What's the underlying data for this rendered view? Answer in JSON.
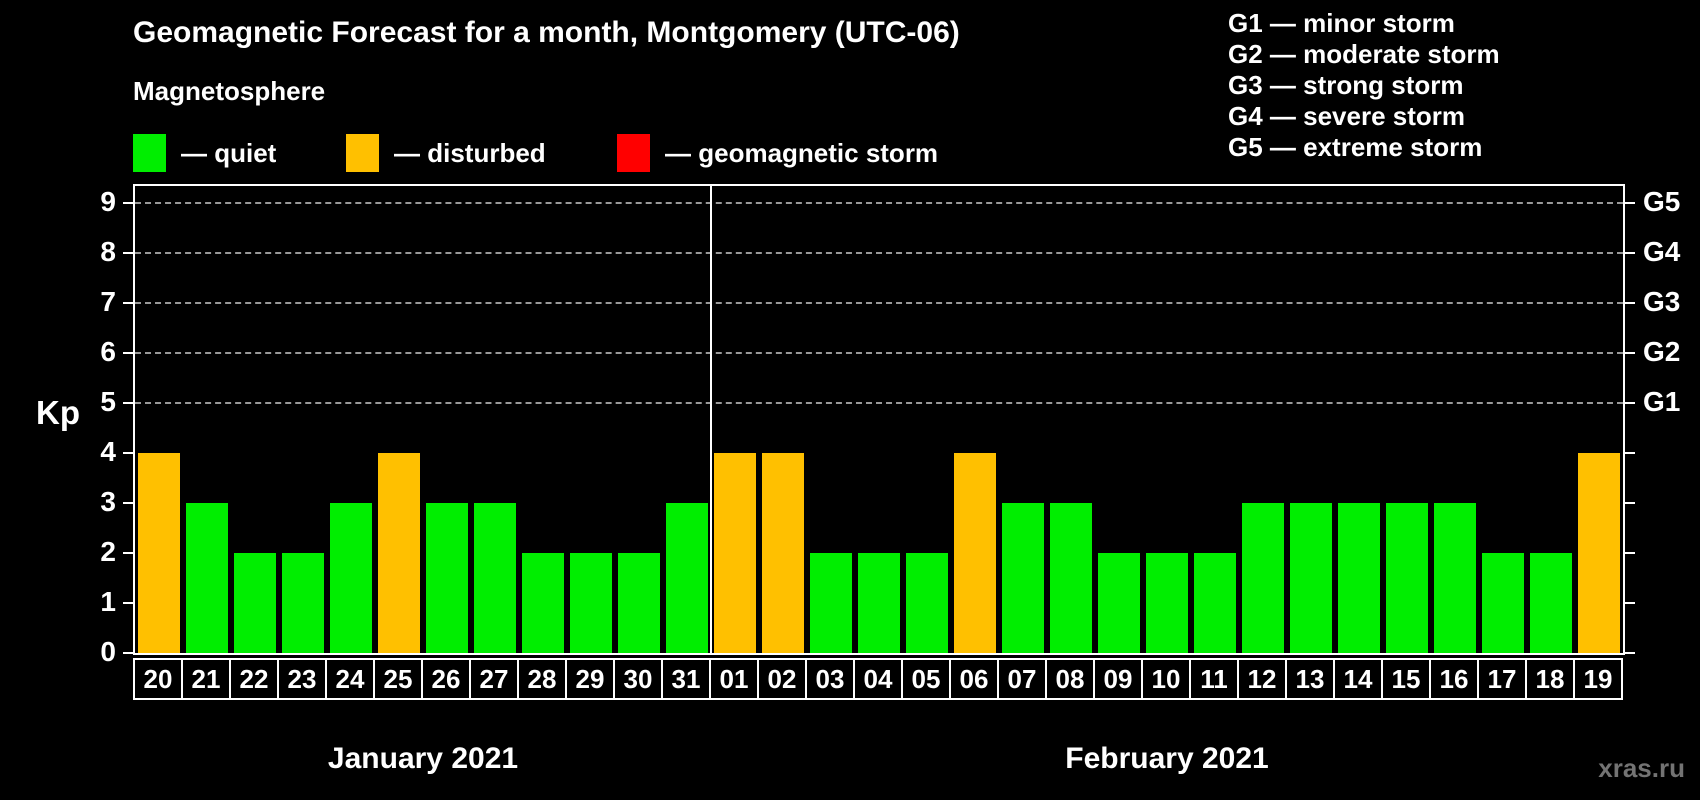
{
  "title": "Geomagnetic Forecast for a month, Montgomery (UTC-06)",
  "magnetosphere_label": "Magnetosphere",
  "legend": {
    "items": [
      {
        "label": "— quiet",
        "state": "quiet"
      },
      {
        "label": "— disturbed",
        "state": "disturbed"
      },
      {
        "label": "— geomagnetic storm",
        "state": "storm"
      }
    ]
  },
  "g_legend": [
    {
      "label": "G1 — minor storm"
    },
    {
      "label": "G2 — moderate storm"
    },
    {
      "label": "G3 — strong storm"
    },
    {
      "label": "G4 — severe storm"
    },
    {
      "label": "G5 — extreme storm"
    }
  ],
  "watermark": "xras.ru",
  "colors": {
    "quiet": "#00EE00",
    "disturbed": "#FFC000",
    "storm": "#FF0000",
    "axis": "#FFFFFF",
    "gridline": "#999999",
    "background": "#000000",
    "watermark": "#737373"
  },
  "chart_data": {
    "type": "bar",
    "ylabel": "Kp",
    "ylim": [
      0,
      9.4
    ],
    "kp_ticks": [
      0,
      1,
      2,
      3,
      4,
      5,
      6,
      7,
      8,
      9
    ],
    "g_ticks": [
      {
        "kp": 5,
        "label": "G1"
      },
      {
        "kp": 6,
        "label": "G2"
      },
      {
        "kp": 7,
        "label": "G3"
      },
      {
        "kp": 8,
        "label": "G4"
      },
      {
        "kp": 9,
        "label": "G5"
      }
    ],
    "dashed_gridlines_at_kp": [
      5,
      6,
      7,
      8,
      9
    ],
    "grid": "dashed-horizontal-on-storm-levels",
    "legend_position": "top",
    "months": [
      {
        "name": "January 2021",
        "days": [
          {
            "day": "20",
            "kp": 4,
            "state": "disturbed"
          },
          {
            "day": "21",
            "kp": 3,
            "state": "quiet"
          },
          {
            "day": "22",
            "kp": 2,
            "state": "quiet"
          },
          {
            "day": "23",
            "kp": 2,
            "state": "quiet"
          },
          {
            "day": "24",
            "kp": 3,
            "state": "quiet"
          },
          {
            "day": "25",
            "kp": 4,
            "state": "disturbed"
          },
          {
            "day": "26",
            "kp": 3,
            "state": "quiet"
          },
          {
            "day": "27",
            "kp": 3,
            "state": "quiet"
          },
          {
            "day": "28",
            "kp": 2,
            "state": "quiet"
          },
          {
            "day": "29",
            "kp": 2,
            "state": "quiet"
          },
          {
            "day": "30",
            "kp": 2,
            "state": "quiet"
          },
          {
            "day": "31",
            "kp": 3,
            "state": "quiet"
          }
        ]
      },
      {
        "name": "February 2021",
        "days": [
          {
            "day": "01",
            "kp": 4,
            "state": "disturbed"
          },
          {
            "day": "02",
            "kp": 4,
            "state": "disturbed"
          },
          {
            "day": "03",
            "kp": 2,
            "state": "quiet"
          },
          {
            "day": "04",
            "kp": 2,
            "state": "quiet"
          },
          {
            "day": "05",
            "kp": 2,
            "state": "quiet"
          },
          {
            "day": "06",
            "kp": 4,
            "state": "disturbed"
          },
          {
            "day": "07",
            "kp": 3,
            "state": "quiet"
          },
          {
            "day": "08",
            "kp": 3,
            "state": "quiet"
          },
          {
            "day": "09",
            "kp": 2,
            "state": "quiet"
          },
          {
            "day": "10",
            "kp": 2,
            "state": "quiet"
          },
          {
            "day": "11",
            "kp": 2,
            "state": "quiet"
          },
          {
            "day": "12",
            "kp": 3,
            "state": "quiet"
          },
          {
            "day": "13",
            "kp": 3,
            "state": "quiet"
          },
          {
            "day": "14",
            "kp": 3,
            "state": "quiet"
          },
          {
            "day": "15",
            "kp": 3,
            "state": "quiet"
          },
          {
            "day": "16",
            "kp": 3,
            "state": "quiet"
          },
          {
            "day": "17",
            "kp": 2,
            "state": "quiet"
          },
          {
            "day": "18",
            "kp": 2,
            "state": "quiet"
          },
          {
            "day": "19",
            "kp": 4,
            "state": "disturbed"
          }
        ]
      }
    ]
  }
}
